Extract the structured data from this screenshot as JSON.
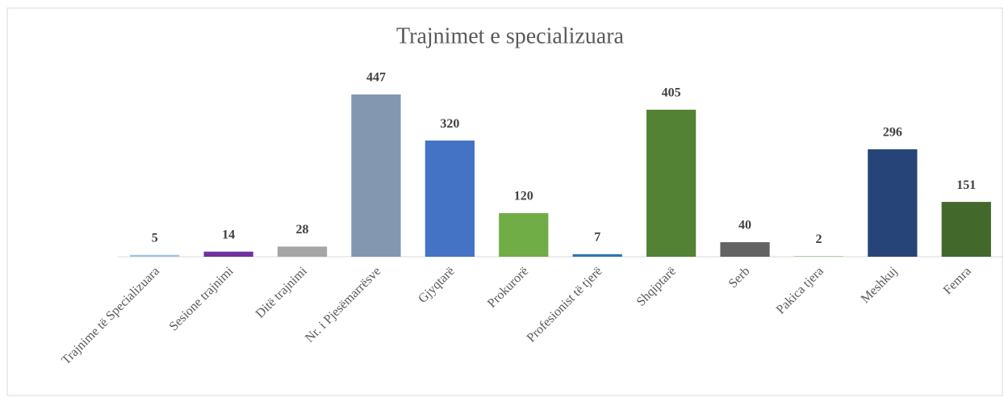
{
  "chart_data": {
    "type": "bar",
    "title": "Trajnimet e specializuara",
    "categories": [
      "Trajnime të Specializuara",
      "Sesione trajnimi",
      "Ditë trajnimi",
      "Nr. i Pjesëmarrësve",
      "Gjyqtarë",
      "Prokurorë",
      "Profesionist të tjerë",
      "Shqiptarë",
      "Serb",
      "Pakica tjera",
      "Meshkuj",
      "Femra"
    ],
    "values": [
      5,
      14,
      28,
      447,
      320,
      120,
      7,
      405,
      40,
      2,
      296,
      151
    ],
    "colors": [
      "#9dc3e6",
      "#7030a0",
      "#a5a5a5",
      "#8497b0",
      "#4472c4",
      "#70ad47",
      "#2e75b6",
      "#548235",
      "#636363",
      "#a9d18e",
      "#264478",
      "#43682b"
    ]
  }
}
